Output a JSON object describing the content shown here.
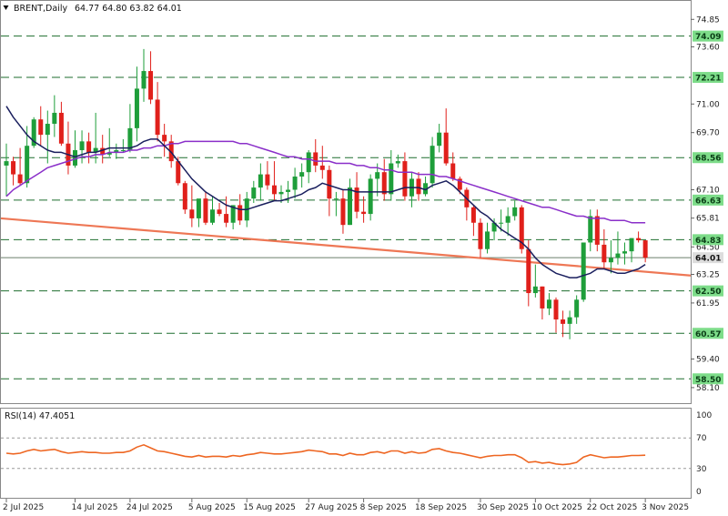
{
  "header": {
    "symbol": "BRENT,Daily",
    "ohlc": "64.77 64.80 63.82 64.01",
    "collapse_icon": "triangle-down-icon"
  },
  "rsi": {
    "label": "RSI(14) 47.4051",
    "value": 47.4051,
    "levels": [
      70,
      30
    ],
    "axis_ticks": [
      "100",
      "70",
      "30",
      "0"
    ]
  },
  "colors": {
    "bull": "#1e9e3a",
    "bear": "#e0201b",
    "sma_fast": "#1a1f5e",
    "sma_slow": "#8a2fc9",
    "trendline": "#ee7755",
    "rsi_line": "#ee6622",
    "level_line": "#1e6e2e",
    "level_label_bg": "#7ddc89",
    "current_label_bg": "#dddddd"
  },
  "chart_data": {
    "type": "candlestick",
    "title": "BRENT,Daily",
    "ylim": [
      57.6,
      75.4
    ],
    "y_ticks": [
      "74.85",
      "73.60",
      "71.00",
      "69.70",
      "67.10",
      "65.81",
      "64.50",
      "63.25",
      "61.95",
      "59.40",
      "58.10"
    ],
    "x_labels": [
      "2 Jul 2025",
      "14 Jul 2025",
      "24 Jul 2025",
      "5 Aug 2025",
      "15 Aug 2025",
      "27 Aug 2025",
      "8 Sep 2025",
      "18 Sep 2025",
      "30 Sep 2025",
      "10 Oct 2025",
      "22 Oct 2025",
      "3 Nov 2025"
    ],
    "x_label_index": [
      0,
      10,
      18,
      27,
      35,
      44,
      52,
      60,
      69,
      77,
      85,
      93
    ],
    "levels": [
      {
        "value": 74.09,
        "label": "74.09"
      },
      {
        "value": 72.21,
        "label": "72.21"
      },
      {
        "value": 68.56,
        "label": "68.56"
      },
      {
        "value": 66.63,
        "label": "66.63"
      },
      {
        "value": 64.83,
        "label": "64.83"
      },
      {
        "value": 62.5,
        "label": "62.50"
      },
      {
        "value": 60.57,
        "label": "60.57"
      },
      {
        "value": 58.5,
        "label": "58.50"
      }
    ],
    "current_price": {
      "value": 64.01,
      "label": "64.01"
    },
    "candles": {
      "open": [
        68.2,
        68.4,
        67.8,
        67.4,
        69.1,
        70.3,
        69.6,
        70.1,
        70.6,
        69.2,
        68.2,
        68.9,
        69.3,
        68.8,
        69.0,
        68.7,
        68.8,
        68.9,
        68.9,
        69.9,
        71.7,
        72.5,
        71.2,
        69.6,
        69.3,
        68.4,
        67.4,
        66.2,
        65.8,
        66.7,
        65.6,
        66.2,
        66.0,
        65.6,
        66.4,
        65.7,
        66.7,
        67.2,
        67.8,
        67.3,
        66.9,
        67.0,
        67.1,
        67.7,
        67.9,
        68.8,
        68.2,
        68.0,
        66.7,
        66.7,
        65.5,
        67.2,
        66.1,
        66.0,
        67.6,
        67.9,
        66.9,
        68.3,
        68.4,
        66.8,
        67.6,
        66.9,
        67.4,
        69.1,
        69.7,
        68.3,
        67.6,
        67.1,
        66.3,
        65.6,
        64.4,
        65.2,
        65.6,
        65.6,
        65.9,
        66.3,
        64.4,
        62.4,
        62.7,
        61.7,
        62.1,
        61.2,
        61.0,
        61.3,
        62.1,
        64.7,
        65.9,
        64.6,
        63.8,
        64.0,
        64.2,
        64.3,
        64.9,
        64.8
      ],
      "high": [
        69.2,
        68.6,
        69.0,
        70.0,
        70.4,
        70.9,
        70.7,
        71.4,
        71.1,
        70.2,
        69.8,
        69.8,
        69.7,
        70.6,
        69.6,
        69.9,
        69.2,
        69.4,
        71.0,
        72.7,
        73.5,
        73.4,
        72.0,
        70.1,
        69.6,
        68.6,
        67.5,
        67.3,
        66.4,
        67.0,
        66.8,
        66.5,
        66.8,
        66.4,
        66.9,
        67.0,
        67.5,
        68.3,
        68.4,
        68.4,
        67.3,
        67.5,
        68.1,
        68.3,
        68.9,
        69.4,
        69.1,
        68.2,
        67.0,
        67.1,
        67.6,
        67.9,
        66.8,
        67.8,
        68.3,
        68.5,
        68.9,
        68.7,
        68.8,
        67.9,
        67.9,
        67.7,
        69.5,
        70.1,
        70.8,
        68.8,
        67.7,
        67.2,
        66.4,
        65.8,
        65.6,
        65.8,
        66.2,
        66.3,
        66.6,
        66.4,
        64.8,
        63.7,
        62.7,
        62.4,
        62.2,
        61.6,
        61.6,
        62.3,
        64.7,
        66.2,
        66.2,
        65.3,
        64.8,
        65.2,
        64.7,
        64.9,
        65.2,
        64.8
      ],
      "low": [
        66.8,
        67.3,
        67.3,
        67.2,
        69.0,
        69.1,
        68.3,
        69.5,
        69.1,
        67.8,
        68.1,
        68.3,
        68.3,
        68.3,
        68.3,
        68.6,
        68.5,
        68.8,
        68.8,
        69.3,
        71.1,
        71.0,
        69.3,
        68.6,
        68.1,
        67.3,
        66.0,
        65.4,
        65.4,
        65.5,
        65.5,
        65.9,
        65.4,
        65.3,
        65.5,
        65.4,
        66.5,
        66.6,
        67.1,
        66.6,
        66.5,
        66.5,
        66.7,
        67.2,
        67.4,
        67.9,
        67.6,
        65.9,
        65.9,
        65.1,
        65.5,
        65.8,
        65.6,
        65.7,
        66.8,
        66.6,
        66.6,
        68.1,
        66.6,
        66.3,
        66.6,
        66.8,
        67.2,
        68.8,
        68.2,
        67.5,
        66.9,
        65.7,
        65.0,
        64.0,
        64.2,
        64.8,
        65.2,
        65.0,
        65.7,
        64.2,
        61.8,
        62.2,
        61.2,
        61.4,
        60.6,
        60.4,
        60.3,
        61.0,
        62.0,
        64.3,
        64.3,
        63.5,
        63.3,
        63.7,
        63.7,
        63.8,
        64.7,
        63.8
      ],
      "close": [
        68.4,
        67.8,
        67.4,
        69.1,
        70.3,
        69.6,
        70.1,
        70.6,
        69.2,
        68.2,
        68.9,
        69.3,
        68.8,
        69.0,
        68.7,
        68.8,
        68.9,
        68.9,
        69.9,
        71.7,
        72.5,
        71.2,
        69.6,
        69.3,
        68.4,
        67.4,
        66.2,
        65.8,
        66.7,
        65.6,
        66.2,
        66.0,
        65.6,
        66.4,
        65.7,
        66.7,
        67.2,
        67.8,
        67.3,
        66.9,
        67.0,
        67.1,
        67.7,
        67.9,
        68.8,
        68.2,
        68.0,
        66.7,
        66.7,
        65.5,
        67.2,
        66.1,
        66.0,
        67.6,
        67.9,
        66.9,
        68.3,
        68.4,
        66.8,
        67.6,
        66.9,
        67.4,
        69.1,
        69.7,
        68.3,
        67.6,
        67.1,
        66.3,
        65.6,
        64.4,
        65.2,
        65.6,
        65.6,
        65.9,
        66.3,
        64.4,
        62.4,
        62.7,
        61.7,
        62.1,
        61.2,
        61.0,
        61.3,
        62.1,
        64.7,
        65.9,
        64.6,
        63.8,
        64.0,
        64.2,
        64.3,
        64.9,
        64.8,
        64.01
      ]
    },
    "series": [
      {
        "values": [
          70.9,
          70.4,
          70.0,
          69.6,
          69.3,
          69.1,
          68.9,
          68.8,
          68.8,
          68.7,
          68.6,
          68.7,
          68.8,
          68.8,
          68.9,
          69.0,
          69.0,
          69.0,
          69.0,
          69.1,
          69.3,
          69.4,
          69.4,
          69.1,
          68.8,
          68.4,
          68.0,
          67.6,
          67.3,
          67.0,
          66.8,
          66.6,
          66.4,
          66.3,
          66.2,
          66.2,
          66.3,
          66.4,
          66.5,
          66.6,
          66.6,
          66.7,
          66.8,
          66.9,
          67.1,
          67.2,
          67.4,
          67.3,
          67.2,
          67.1,
          67.1,
          67.0,
          67.0,
          67.0,
          67.0,
          67.0,
          67.0,
          67.1,
          67.2,
          67.2,
          67.2,
          67.1,
          67.3,
          67.4,
          67.5,
          67.3,
          67.0,
          66.7,
          66.4,
          66.1,
          65.9,
          65.6,
          65.3,
          65.1,
          64.9,
          64.7,
          64.4,
          64.0,
          63.7,
          63.5,
          63.3,
          63.2,
          63.1,
          63.1,
          63.2,
          63.3,
          63.5,
          63.5,
          63.4,
          63.3,
          63.3,
          63.4,
          63.5,
          63.7
        ]
      },
      {
        "values": [
          66.8,
          67.1,
          67.3,
          67.5,
          67.7,
          67.9,
          68.1,
          68.2,
          68.3,
          68.4,
          68.5,
          68.6,
          68.6,
          68.7,
          68.7,
          68.8,
          68.8,
          68.8,
          68.9,
          68.9,
          69.0,
          69.0,
          69.1,
          69.1,
          69.2,
          69.2,
          69.3,
          69.3,
          69.3,
          69.3,
          69.3,
          69.3,
          69.3,
          69.3,
          69.2,
          69.2,
          69.1,
          69.0,
          68.9,
          68.8,
          68.7,
          68.6,
          68.6,
          68.5,
          68.5,
          68.4,
          68.4,
          68.4,
          68.3,
          68.3,
          68.3,
          68.2,
          68.2,
          68.1,
          68.1,
          68.0,
          68.0,
          67.9,
          67.9,
          67.9,
          67.8,
          67.8,
          67.8,
          67.7,
          67.7,
          67.6,
          67.5,
          67.4,
          67.3,
          67.2,
          67.1,
          67.0,
          66.9,
          66.8,
          66.7,
          66.6,
          66.5,
          66.4,
          66.3,
          66.3,
          66.2,
          66.1,
          66.0,
          65.9,
          65.9,
          65.8,
          65.8,
          65.8,
          65.7,
          65.7,
          65.7,
          65.6,
          65.6,
          65.6
        ]
      },
      {
        "values": [
          65.8,
          63.2
        ]
      }
    ],
    "rsi_values": [
      50,
      49,
      50,
      53,
      55,
      53,
      54,
      55,
      52,
      50,
      51,
      52,
      51,
      51,
      50,
      50,
      51,
      51,
      53,
      58,
      61,
      57,
      53,
      52,
      50,
      48,
      46,
      45,
      47,
      45,
      46,
      46,
      45,
      47,
      46,
      48,
      49,
      51,
      50,
      49,
      49,
      50,
      51,
      52,
      54,
      53,
      52,
      49,
      49,
      47,
      50,
      48,
      48,
      51,
      52,
      50,
      53,
      53,
      50,
      52,
      50,
      51,
      55,
      56,
      53,
      51,
      50,
      48,
      46,
      44,
      46,
      47,
      47,
      48,
      48,
      44,
      38,
      39,
      37,
      38,
      36,
      35,
      36,
      38,
      45,
      48,
      46,
      44,
      45,
      45,
      46,
      47,
      47,
      47.4
    ]
  }
}
